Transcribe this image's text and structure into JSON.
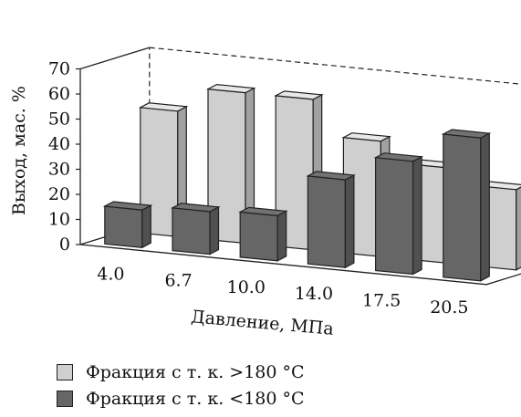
{
  "chart_data": {
    "type": "bar",
    "title": "",
    "xlabel": "Давление, МПа",
    "ylabel": "Выход, мас. %",
    "ylim": [
      0,
      70
    ],
    "yticks": [
      0,
      10,
      20,
      30,
      40,
      50,
      60,
      70
    ],
    "categories": [
      "4.0",
      "6.7",
      "10.0",
      "14.0",
      "17.5",
      "20.5"
    ],
    "grid": false,
    "legend_position": "bottom-left",
    "series": [
      {
        "name": "Фракция с т. к. >180 °C",
        "color": "#cfcfcf",
        "values": [
          50,
          60,
          60,
          46,
          38,
          32
        ]
      },
      {
        "name": "Фракция с т. к. <180 °C",
        "color": "#666666",
        "values": [
          15,
          17,
          18,
          35,
          45,
          57
        ]
      }
    ]
  }
}
